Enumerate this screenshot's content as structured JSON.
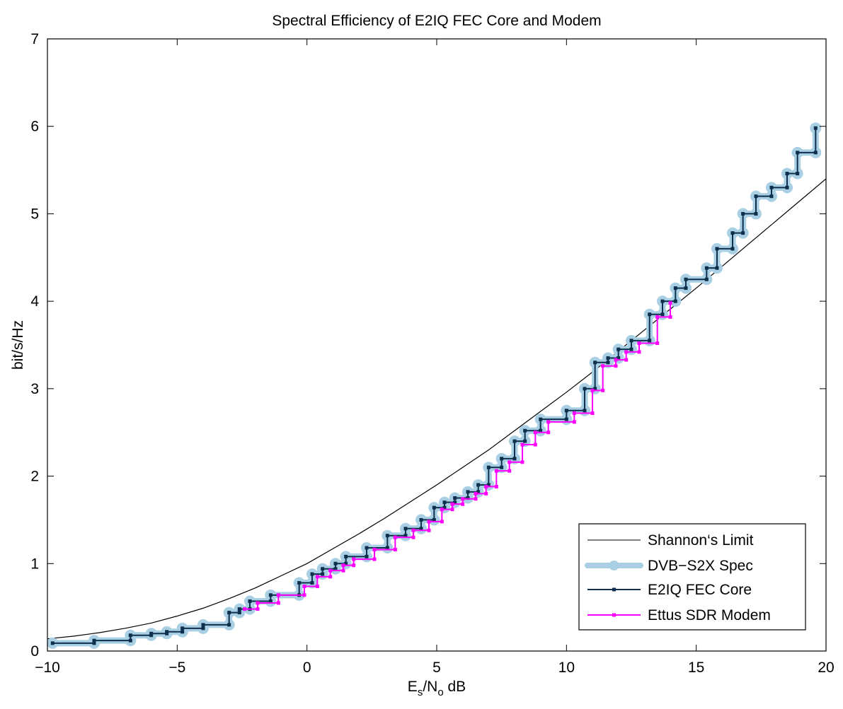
{
  "chart_data": {
    "type": "line",
    "title": "Spectral Efficiency of E2IQ FEC Core and Modem",
    "xlabel": {
      "main": "E",
      "sub1": "s",
      "mid": "/N",
      "sub2": "o",
      "tail": " dB"
    },
    "ylabel": "bit/s/Hz",
    "xlim": [
      -10,
      20
    ],
    "ylim": [
      0,
      7
    ],
    "xticks": [
      -10,
      -5,
      0,
      5,
      10,
      15,
      20
    ],
    "xtick_labels": [
      "−10",
      "−5",
      "0",
      "5",
      "10",
      "15",
      "20"
    ],
    "yticks": [
      0,
      1,
      2,
      3,
      4,
      5,
      6,
      7
    ],
    "ytick_labels": [
      "0",
      "1",
      "2",
      "3",
      "4",
      "5",
      "6",
      "7"
    ],
    "grid": false,
    "legend_position": "bottom-right",
    "series": [
      {
        "name": "Shannon‘s Limit",
        "color": "#000000",
        "style": "thin-line",
        "x": [
          -10,
          -9,
          -8,
          -7,
          -6,
          -5,
          -4,
          -3,
          -2,
          -1,
          0,
          1,
          2,
          3,
          4,
          5,
          6,
          7,
          8,
          9,
          10,
          11,
          12,
          13,
          14,
          15,
          16,
          17,
          18,
          19,
          20
        ],
        "y": [
          0.14,
          0.17,
          0.21,
          0.26,
          0.32,
          0.4,
          0.49,
          0.6,
          0.72,
          0.86,
          1.0,
          1.17,
          1.34,
          1.52,
          1.71,
          1.9,
          2.1,
          2.3,
          2.52,
          2.74,
          2.96,
          3.19,
          3.43,
          3.67,
          3.91,
          4.15,
          4.4,
          4.65,
          4.9,
          5.15,
          5.4
        ]
      },
      {
        "name": "DVB−S2X Spec",
        "color": "#a8cfe3",
        "style": "thick-step",
        "x": [
          -9.8,
          -8.2,
          -6.8,
          -6.0,
          -5.4,
          -4.8,
          -4.0,
          -3.0,
          -2.6,
          -2.2,
          -1.4,
          -0.3,
          0.2,
          0.6,
          1.1,
          1.5,
          2.3,
          3.1,
          3.8,
          4.4,
          4.9,
          5.3,
          5.7,
          6.2,
          6.6,
          7.0,
          7.5,
          8.0,
          8.4,
          9.0,
          10.0,
          10.7,
          11.1,
          11.6,
          12.0,
          12.5,
          13.2,
          13.7,
          14.2,
          14.6,
          15.4,
          15.8,
          16.4,
          16.8,
          17.3,
          17.9,
          18.5,
          18.9,
          19.6
        ],
        "y": [
          0.09,
          0.12,
          0.18,
          0.2,
          0.22,
          0.26,
          0.3,
          0.44,
          0.48,
          0.57,
          0.64,
          0.78,
          0.88,
          0.94,
          1.0,
          1.08,
          1.18,
          1.32,
          1.4,
          1.5,
          1.64,
          1.7,
          1.75,
          1.82,
          1.9,
          2.1,
          2.2,
          2.4,
          2.52,
          2.65,
          2.75,
          3.0,
          3.3,
          3.35,
          3.45,
          3.55,
          3.85,
          4.0,
          4.15,
          4.25,
          4.38,
          4.6,
          4.78,
          5.0,
          5.2,
          5.3,
          5.46,
          5.7,
          5.98
        ]
      },
      {
        "name": "E2IQ FEC Core",
        "color": "#0e2f4d",
        "style": "step-marker",
        "x": [
          -9.8,
          -8.2,
          -6.8,
          -6.0,
          -5.4,
          -4.8,
          -4.0,
          -3.0,
          -2.6,
          -2.2,
          -1.4,
          -0.3,
          0.2,
          0.6,
          1.1,
          1.5,
          2.3,
          3.1,
          3.8,
          4.4,
          4.9,
          5.3,
          5.7,
          6.2,
          6.6,
          7.0,
          7.5,
          8.0,
          8.4,
          9.0,
          10.0,
          10.7,
          11.1,
          11.6,
          12.0,
          12.5,
          13.2,
          13.7,
          14.2,
          14.6,
          15.4,
          15.8,
          16.4,
          16.8,
          17.3,
          17.9,
          18.5,
          18.9,
          19.6
        ],
        "y": [
          0.09,
          0.12,
          0.18,
          0.2,
          0.22,
          0.26,
          0.3,
          0.44,
          0.48,
          0.57,
          0.64,
          0.78,
          0.88,
          0.94,
          1.0,
          1.08,
          1.18,
          1.32,
          1.4,
          1.5,
          1.64,
          1.7,
          1.75,
          1.82,
          1.9,
          2.1,
          2.2,
          2.4,
          2.52,
          2.65,
          2.75,
          3.0,
          3.3,
          3.35,
          3.45,
          3.55,
          3.85,
          4.0,
          4.15,
          4.25,
          4.38,
          4.6,
          4.78,
          5.0,
          5.2,
          5.3,
          5.46,
          5.7,
          5.98
        ]
      },
      {
        "name": "Ettus SDR Modem",
        "color": "#ff00ff",
        "style": "step-marker",
        "x": [
          -2.4,
          -1.9,
          -1.1,
          -0.1,
          0.4,
          0.9,
          1.4,
          1.8,
          2.6,
          3.4,
          4.1,
          4.7,
          5.2,
          5.6,
          6.0,
          6.5,
          6.9,
          7.3,
          7.8,
          8.3,
          8.8,
          9.3,
          10.3,
          11.0,
          11.4,
          11.9,
          12.3,
          12.8,
          13.5,
          14.0
        ],
        "y": [
          0.48,
          0.55,
          0.64,
          0.74,
          0.85,
          0.92,
          0.98,
          1.05,
          1.16,
          1.3,
          1.38,
          1.48,
          1.62,
          1.68,
          1.74,
          1.8,
          1.88,
          2.06,
          2.16,
          2.36,
          2.5,
          2.62,
          2.72,
          2.98,
          3.26,
          3.33,
          3.42,
          3.52,
          3.82,
          3.98
        ]
      }
    ]
  },
  "legend": {
    "items": [
      "Shannon‘s Limit",
      "DVB−S2X Spec",
      "E2IQ FEC Core",
      "Ettus SDR Modem"
    ]
  }
}
